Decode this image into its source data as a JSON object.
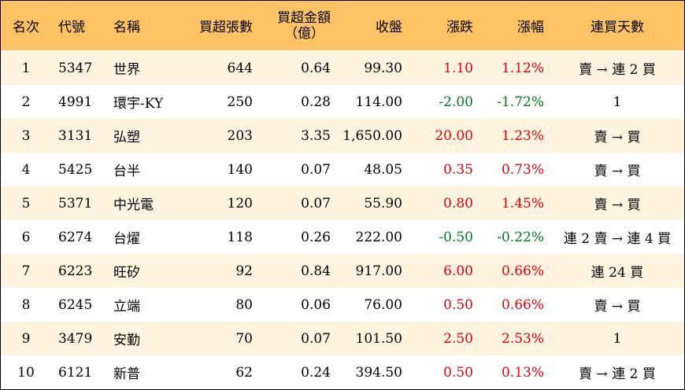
{
  "table": {
    "headers": {
      "rank": "名次",
      "code": "代號",
      "name": "名稱",
      "net_buy_lots": "買超張數",
      "net_buy_amount_line1": "買超金額",
      "net_buy_amount_line2": "（億）",
      "close": "收盤",
      "change": "漲跌",
      "change_pct": "漲幅",
      "consecutive_days": "連買天數"
    },
    "colors": {
      "header_bg": "#FDC263",
      "odd_row_bg": "#FEF3DF",
      "even_row_bg": "#FFFFFF",
      "up": "#E8000B",
      "down": "#007A1F"
    },
    "rows": [
      {
        "rank": "1",
        "code": "5347",
        "name": "世界",
        "lots": "644",
        "amount": "0.64",
        "close": "99.30",
        "change": "1.10",
        "pct": "1.12%",
        "days": "賣 → 連 2 買",
        "trend": "up"
      },
      {
        "rank": "2",
        "code": "4991",
        "name": "環宇-KY",
        "lots": "250",
        "amount": "0.28",
        "close": "114.00",
        "change": "-2.00",
        "pct": "-1.72%",
        "days": "1",
        "trend": "down"
      },
      {
        "rank": "3",
        "code": "3131",
        "name": "弘塑",
        "lots": "203",
        "amount": "3.35",
        "close": "1,650.00",
        "change": "20.00",
        "pct": "1.23%",
        "days": "賣 → 買",
        "trend": "up"
      },
      {
        "rank": "4",
        "code": "5425",
        "name": "台半",
        "lots": "140",
        "amount": "0.07",
        "close": "48.05",
        "change": "0.35",
        "pct": "0.73%",
        "days": "賣 → 買",
        "trend": "up"
      },
      {
        "rank": "5",
        "code": "5371",
        "name": "中光電",
        "lots": "120",
        "amount": "0.07",
        "close": "55.90",
        "change": "0.80",
        "pct": "1.45%",
        "days": "賣 → 買",
        "trend": "up"
      },
      {
        "rank": "6",
        "code": "6274",
        "name": "台燿",
        "lots": "118",
        "amount": "0.26",
        "close": "222.00",
        "change": "-0.50",
        "pct": "-0.22%",
        "days": "連 2 賣 → 連 4 買",
        "trend": "down"
      },
      {
        "rank": "7",
        "code": "6223",
        "name": "旺矽",
        "lots": "92",
        "amount": "0.84",
        "close": "917.00",
        "change": "6.00",
        "pct": "0.66%",
        "days": "連 24 買",
        "trend": "up"
      },
      {
        "rank": "8",
        "code": "6245",
        "name": "立端",
        "lots": "80",
        "amount": "0.06",
        "close": "76.00",
        "change": "0.50",
        "pct": "0.66%",
        "days": "賣 → 買",
        "trend": "up"
      },
      {
        "rank": "9",
        "code": "3479",
        "name": "安勤",
        "lots": "70",
        "amount": "0.07",
        "close": "101.50",
        "change": "2.50",
        "pct": "2.53%",
        "days": "1",
        "trend": "up"
      },
      {
        "rank": "10",
        "code": "6121",
        "name": "新普",
        "lots": "62",
        "amount": "0.24",
        "close": "394.50",
        "change": "0.50",
        "pct": "0.13%",
        "days": "賣 → 連 2 買",
        "trend": "up"
      }
    ]
  }
}
